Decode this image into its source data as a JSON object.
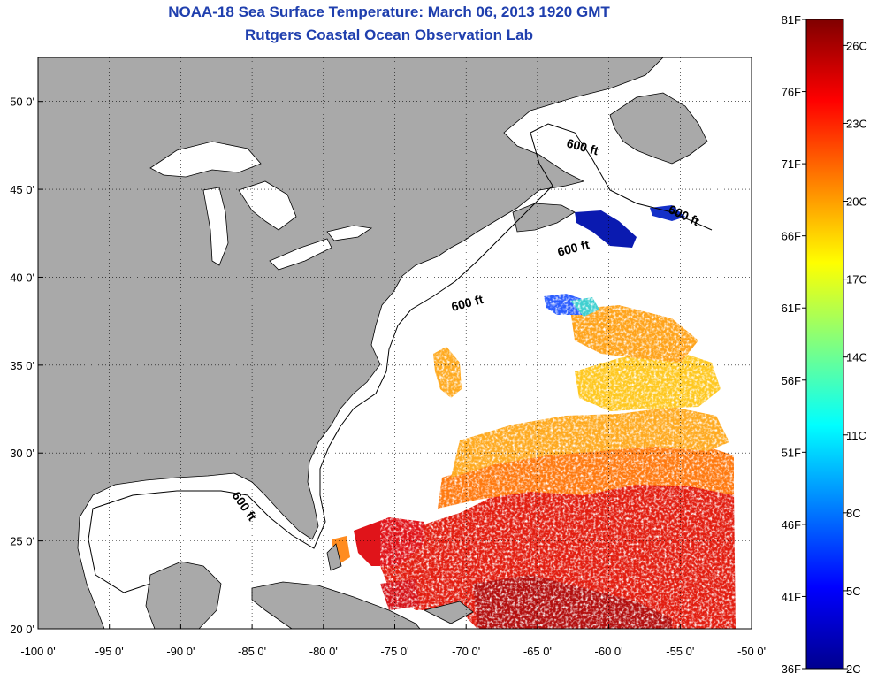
{
  "header": {
    "title": "NOAA-18 Sea Surface Temperature:  March 06, 2013 1920 GMT",
    "subtitle": "Rutgers Coastal Ocean Observation Lab"
  },
  "map": {
    "lon_range": [
      -100,
      -50
    ],
    "lat_range": [
      20,
      52.5
    ],
    "lon_ticks": [
      {
        "value": -100,
        "label": "-100 0'"
      },
      {
        "value": -95,
        "label": "-95 0'"
      },
      {
        "value": -90,
        "label": "-90 0'"
      },
      {
        "value": -85,
        "label": "-85 0'"
      },
      {
        "value": -80,
        "label": "-80 0'"
      },
      {
        "value": -75,
        "label": "-75 0'"
      },
      {
        "value": -70,
        "label": "-70 0'"
      },
      {
        "value": -65,
        "label": "-65 0'"
      },
      {
        "value": -60,
        "label": "-60 0'"
      },
      {
        "value": -55,
        "label": "-55 0'"
      },
      {
        "value": -50,
        "label": "-50 0'"
      }
    ],
    "lat_ticks": [
      {
        "value": 20,
        "label": "20 0'"
      },
      {
        "value": 25,
        "label": "25 0'"
      },
      {
        "value": 30,
        "label": "30 0'"
      },
      {
        "value": 35,
        "label": "35 0'"
      },
      {
        "value": 40,
        "label": "40 0'"
      },
      {
        "value": 45,
        "label": "45 0'"
      },
      {
        "value": 50,
        "label": "50 0'"
      }
    ],
    "grid": "dotted",
    "land_color": "#a9a9a9",
    "contour_labels": [
      "600 ft",
      "600 ft",
      "600 ft",
      "600 ft",
      "600 ft"
    ]
  },
  "colorbar": {
    "min_f": 36,
    "max_f": 81,
    "min_c": 2,
    "max_c": 27,
    "fahrenheit_labels": [
      {
        "value": 81,
        "label": "81F"
      },
      {
        "value": 76,
        "label": "76F"
      },
      {
        "value": 71,
        "label": "71F"
      },
      {
        "value": 66,
        "label": "66F"
      },
      {
        "value": 61,
        "label": "61F"
      },
      {
        "value": 56,
        "label": "56F"
      },
      {
        "value": 51,
        "label": "51F"
      },
      {
        "value": 46,
        "label": "46F"
      },
      {
        "value": 41,
        "label": "41F"
      },
      {
        "value": 36,
        "label": "36F"
      }
    ],
    "celsius_labels": [
      {
        "value": 26,
        "label": "26C"
      },
      {
        "value": 23,
        "label": "23C"
      },
      {
        "value": 20,
        "label": "20C"
      },
      {
        "value": 17,
        "label": "17C"
      },
      {
        "value": 14,
        "label": "14C"
      },
      {
        "value": 11,
        "label": "11C"
      },
      {
        "value": 8,
        "label": "8C"
      },
      {
        "value": 5,
        "label": "5C"
      },
      {
        "value": 2,
        "label": "2C"
      }
    ],
    "stops": [
      "#00008f",
      "#0000ff",
      "#0080ff",
      "#00ffff",
      "#80ff80",
      "#ffff00",
      "#ff8000",
      "#ff0000",
      "#800000"
    ]
  }
}
